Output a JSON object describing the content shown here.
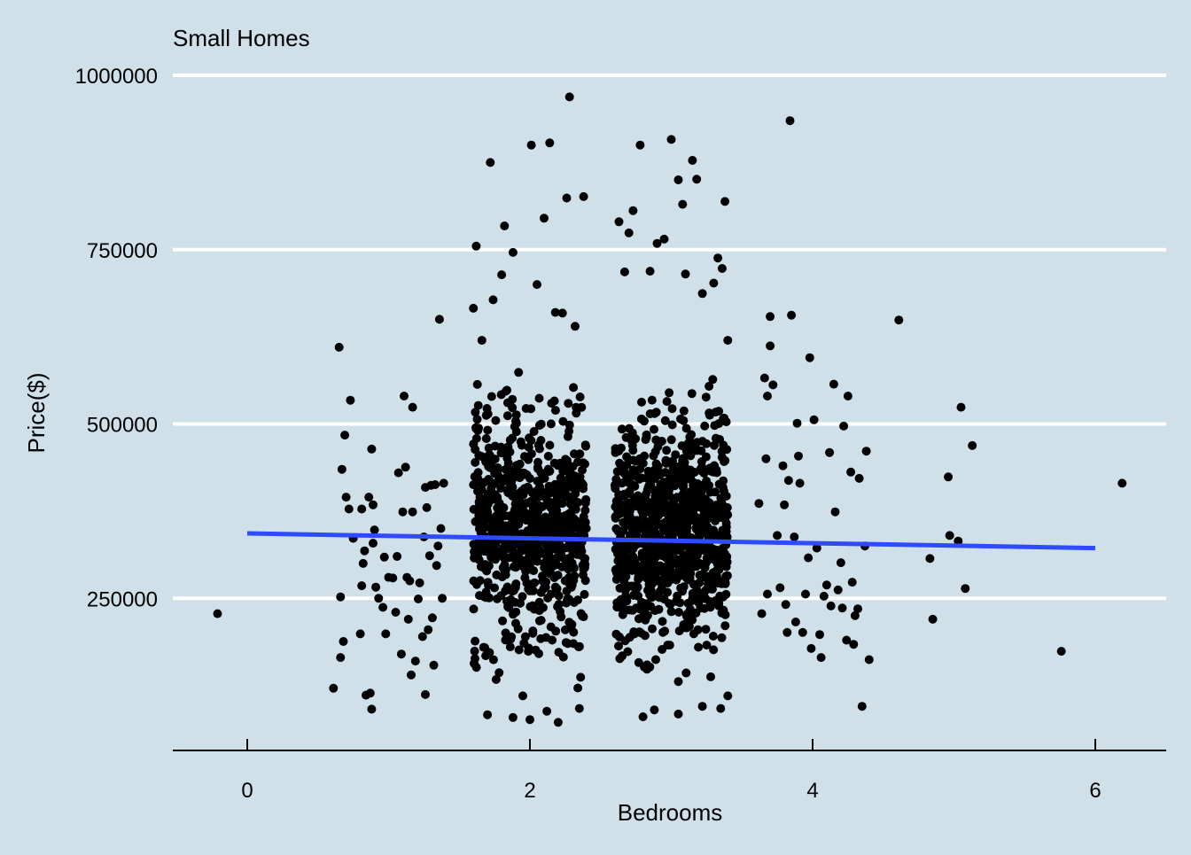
{
  "chart_data": {
    "type": "scatter",
    "title": "Small Homes",
    "xlabel": "Bedrooms",
    "ylabel": "Price($)",
    "xlim": [
      -0.5,
      6.5
    ],
    "ylim": [
      50000,
      1050000
    ],
    "x_ticks": [
      0,
      2,
      4,
      6
    ],
    "y_ticks": [
      250000,
      500000,
      750000,
      1000000
    ],
    "grid": "horizontal",
    "legend": "none",
    "colors": {
      "background": "#cfe0e8",
      "points": "#000000",
      "gridlines": "#ffffff",
      "trend_line": "#2e4bff"
    },
    "trend_line": {
      "x": [
        0,
        6
      ],
      "y": [
        343000,
        322000
      ]
    },
    "series": [
      {
        "points": [
          [
            -0.21,
            228000
          ],
          [
            0.61,
            121000
          ],
          [
            0.65,
            610000
          ],
          [
            0.66,
            165000
          ],
          [
            0.66,
            252000
          ],
          [
            0.67,
            435000
          ],
          [
            0.68,
            188000
          ],
          [
            0.69,
            484000
          ],
          [
            0.7,
            395000
          ],
          [
            0.72,
            378000
          ],
          [
            0.73,
            534000
          ],
          [
            0.75,
            336000
          ],
          [
            0.8,
            199000
          ],
          [
            0.81,
            378000
          ],
          [
            0.81,
            268000
          ],
          [
            0.82,
            300000
          ],
          [
            0.83,
            318000
          ],
          [
            0.84,
            111000
          ],
          [
            0.86,
            395000
          ],
          [
            0.87,
            114000
          ],
          [
            0.88,
            91000
          ],
          [
            0.88,
            464000
          ],
          [
            0.89,
            384000
          ],
          [
            0.89,
            329000
          ],
          [
            0.9,
            348000
          ],
          [
            0.91,
            266000
          ],
          [
            0.93,
            250000
          ],
          [
            0.96,
            237000
          ],
          [
            0.97,
            309000
          ],
          [
            0.98,
            199000
          ],
          [
            1.0,
            280000
          ],
          [
            1.03,
            279000
          ],
          [
            1.05,
            230000
          ],
          [
            1.06,
            310000
          ],
          [
            1.07,
            430000
          ],
          [
            1.09,
            170000
          ],
          [
            1.1,
            374000
          ],
          [
            1.11,
            540000
          ],
          [
            1.12,
            438000
          ],
          [
            1.13,
            280000
          ],
          [
            1.14,
            220000
          ],
          [
            1.15,
            275000
          ],
          [
            1.16,
            140000
          ],
          [
            1.17,
            524000
          ],
          [
            1.17,
            374000
          ],
          [
            1.19,
            160000
          ],
          [
            1.21,
            249000
          ],
          [
            1.22,
            272000
          ],
          [
            1.24,
            195000
          ],
          [
            1.25,
            338000
          ],
          [
            1.26,
            112000
          ],
          [
            1.26,
            409000
          ],
          [
            1.27,
            380000
          ],
          [
            1.28,
            205000
          ],
          [
            1.29,
            311000
          ],
          [
            1.3,
            412000
          ],
          [
            1.31,
            222000
          ],
          [
            1.32,
            154000
          ],
          [
            1.33,
            413000
          ],
          [
            1.34,
            297000
          ],
          [
            1.35,
            325000
          ],
          [
            1.36,
            650000
          ],
          [
            1.37,
            350000
          ],
          [
            1.38,
            250000
          ],
          [
            1.39,
            415000
          ],
          [
            3.62,
            386000
          ],
          [
            3.64,
            228000
          ],
          [
            3.66,
            566000
          ],
          [
            3.67,
            450000
          ],
          [
            3.68,
            540000
          ],
          [
            3.68,
            256000
          ],
          [
            3.7,
            612000
          ],
          [
            3.7,
            654000
          ],
          [
            3.72,
            556000
          ],
          [
            3.75,
            340000
          ],
          [
            3.77,
            265000
          ],
          [
            3.79,
            440000
          ],
          [
            3.8,
            384000
          ],
          [
            3.81,
            241000
          ],
          [
            3.82,
            201000
          ],
          [
            3.83,
            419000
          ],
          [
            3.84,
            935000
          ],
          [
            3.85,
            656000
          ],
          [
            3.87,
            338000
          ],
          [
            3.88,
            216000
          ],
          [
            3.89,
            501000
          ],
          [
            3.9,
            454000
          ],
          [
            3.91,
            415000
          ],
          [
            3.93,
            201000
          ],
          [
            3.95,
            256000
          ],
          [
            3.97,
            308000
          ],
          [
            3.98,
            595000
          ],
          [
            3.99,
            178000
          ],
          [
            4.01,
            506000
          ],
          [
            4.03,
            322000
          ],
          [
            4.05,
            198000
          ],
          [
            4.06,
            165000
          ],
          [
            4.08,
            253000
          ],
          [
            4.1,
            269000
          ],
          [
            4.12,
            459000
          ],
          [
            4.13,
            239000
          ],
          [
            4.15,
            557000
          ],
          [
            4.16,
            374000
          ],
          [
            4.18,
            262000
          ],
          [
            4.2,
            301000
          ],
          [
            4.21,
            236000
          ],
          [
            4.22,
            497000
          ],
          [
            4.24,
            190000
          ],
          [
            4.25,
            540000
          ],
          [
            4.27,
            431000
          ],
          [
            4.28,
            273000
          ],
          [
            4.29,
            184000
          ],
          [
            4.3,
            225000
          ],
          [
            4.32,
            235000
          ],
          [
            4.33,
            422000
          ],
          [
            4.35,
            95000
          ],
          [
            4.37,
            325000
          ],
          [
            4.38,
            461000
          ],
          [
            4.4,
            162000
          ],
          [
            4.61,
            649000
          ],
          [
            4.83,
            307000
          ],
          [
            4.85,
            220000
          ],
          [
            4.96,
            424000
          ],
          [
            4.97,
            340000
          ],
          [
            5.03,
            332000
          ],
          [
            5.05,
            524000
          ],
          [
            5.08,
            264000
          ],
          [
            5.13,
            469000
          ],
          [
            5.76,
            174000
          ],
          [
            6.19,
            415000
          ],
          [
            1.72,
            875000
          ],
          [
            1.74,
            678000
          ],
          [
            1.8,
            714000
          ],
          [
            1.82,
            784000
          ],
          [
            1.88,
            746000
          ],
          [
            1.92,
            574000
          ],
          [
            2.01,
            900000
          ],
          [
            2.05,
            700000
          ],
          [
            2.1,
            795000
          ],
          [
            2.14,
            903000
          ],
          [
            2.18,
            660000
          ],
          [
            2.23,
            659000
          ],
          [
            2.26,
            824000
          ],
          [
            2.28,
            969000
          ],
          [
            2.32,
            640000
          ],
          [
            2.38,
            826000
          ],
          [
            1.62,
            755000
          ],
          [
            1.6,
            666000
          ],
          [
            1.66,
            620000
          ],
          [
            1.95,
            110000
          ],
          [
            2.0,
            76000
          ],
          [
            2.2,
            72000
          ],
          [
            1.88,
            79000
          ],
          [
            1.7,
            83000
          ],
          [
            2.35,
            92000
          ],
          [
            2.12,
            88000
          ],
          [
            2.63,
            790000
          ],
          [
            2.67,
            718000
          ],
          [
            2.7,
            774000
          ],
          [
            2.73,
            806000
          ],
          [
            2.78,
            900000
          ],
          [
            2.85,
            719000
          ],
          [
            2.9,
            759000
          ],
          [
            2.95,
            765000
          ],
          [
            3.0,
            908000
          ],
          [
            3.05,
            850000
          ],
          [
            3.08,
            815000
          ],
          [
            3.1,
            715000
          ],
          [
            3.15,
            878000
          ],
          [
            3.18,
            851000
          ],
          [
            3.22,
            687000
          ],
          [
            3.3,
            702000
          ],
          [
            3.33,
            738000
          ],
          [
            3.36,
            723000
          ],
          [
            3.38,
            819000
          ],
          [
            3.4,
            620000
          ],
          [
            2.8,
            80000
          ],
          [
            2.88,
            90000
          ],
          [
            3.22,
            95000
          ],
          [
            3.35,
            92000
          ],
          [
            3.4,
            110000
          ],
          [
            3.05,
            84000
          ]
        ]
      }
    ],
    "dense_clusters": [
      {
        "x_range": [
          1.6,
          2.4
        ],
        "y_range": [
          100000,
          600000
        ],
        "n": 720,
        "seed": 11
      },
      {
        "x_range": [
          2.6,
          3.4
        ],
        "y_range": [
          110000,
          590000
        ],
        "n": 900,
        "seed": 29
      }
    ]
  }
}
